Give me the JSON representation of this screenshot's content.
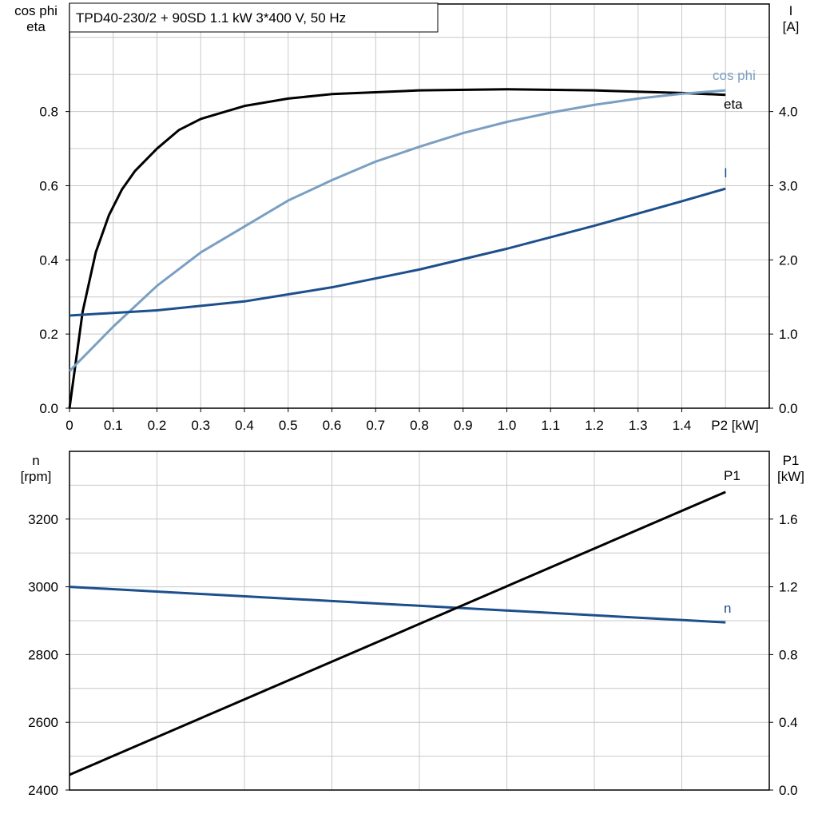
{
  "colors": {
    "eta": "#000000",
    "cos_phi": "#7a9fc2",
    "I": "#1d4f8c",
    "n": "#1d4f8c",
    "P1": "#000000",
    "grid": "#c8c8c8"
  },
  "chart_data": [
    {
      "type": "line",
      "title": "TPD40-230/2 + 90SD   1.1 kW   3*400 V, 50 Hz",
      "xlabel": "P2 [kW]",
      "xlim": [
        0,
        1.6
      ],
      "xticks": [
        "0",
        "0.1",
        "0.2",
        "0.3",
        "0.4",
        "0.5",
        "0.6",
        "0.7",
        "0.8",
        "0.9",
        "1.0",
        "1.1",
        "1.2",
        "1.3",
        "1.4"
      ],
      "ylabel_left": [
        "cos phi",
        "eta"
      ],
      "ylim_left": [
        0,
        1.09
      ],
      "yticks_left": [
        "0.0",
        "0.2",
        "0.4",
        "0.6",
        "0.8"
      ],
      "ylabel_right": [
        "I",
        "[A]"
      ],
      "ylim_right": [
        0,
        5.45
      ],
      "yticks_right": [
        "0.0",
        "1.0",
        "2.0",
        "3.0",
        "4.0"
      ],
      "grid": true,
      "series": [
        {
          "name": "eta",
          "axis": "left",
          "x": [
            0,
            0.03,
            0.06,
            0.09,
            0.12,
            0.15,
            0.2,
            0.25,
            0.3,
            0.4,
            0.5,
            0.6,
            0.8,
            1.0,
            1.2,
            1.4,
            1.5
          ],
          "y": [
            0,
            0.26,
            0.42,
            0.52,
            0.59,
            0.64,
            0.7,
            0.75,
            0.78,
            0.815,
            0.835,
            0.847,
            0.857,
            0.86,
            0.857,
            0.85,
            0.845
          ]
        },
        {
          "name": "cos phi",
          "axis": "left",
          "x": [
            0,
            0.1,
            0.2,
            0.3,
            0.4,
            0.5,
            0.6,
            0.7,
            0.8,
            0.9,
            1.0,
            1.1,
            1.2,
            1.3,
            1.4,
            1.5
          ],
          "y": [
            0.1,
            0.22,
            0.33,
            0.42,
            0.49,
            0.56,
            0.615,
            0.665,
            0.705,
            0.742,
            0.772,
            0.797,
            0.818,
            0.835,
            0.848,
            0.857
          ]
        },
        {
          "name": "I",
          "axis": "right",
          "x": [
            0,
            0.2,
            0.4,
            0.6,
            0.8,
            1.0,
            1.2,
            1.4,
            1.5
          ],
          "y": [
            1.25,
            1.32,
            1.44,
            1.63,
            1.87,
            2.15,
            2.46,
            2.79,
            2.96
          ]
        }
      ]
    },
    {
      "type": "line",
      "xlim": [
        0,
        1.6
      ],
      "ylabel_left": [
        "n",
        "[rpm]"
      ],
      "ylim_left": [
        2400,
        3400
      ],
      "yticks_left": [
        "2400",
        "2600",
        "2800",
        "3000",
        "3200"
      ],
      "ylabel_right": [
        "P1",
        "[kW]"
      ],
      "ylim_right": [
        0,
        2.0
      ],
      "yticks_right": [
        "0.0",
        "0.4",
        "0.8",
        "1.2",
        "1.6"
      ],
      "grid": true,
      "series": [
        {
          "name": "n",
          "axis": "left",
          "x": [
            0,
            1.5
          ],
          "y": [
            3000,
            2895
          ]
        },
        {
          "name": "P1",
          "axis": "right",
          "x": [
            0,
            1.5
          ],
          "y": [
            0.09,
            1.76
          ]
        }
      ]
    }
  ]
}
